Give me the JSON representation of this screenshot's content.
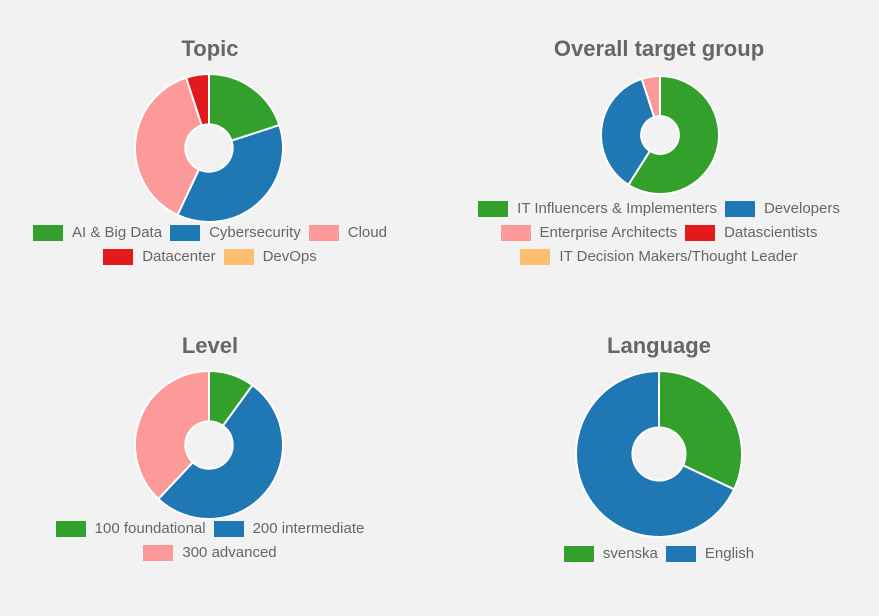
{
  "chart_data": [
    {
      "type": "pie",
      "title": "Topic",
      "categories": [
        "AI & Big Data",
        "Cybersecurity",
        "Cloud",
        "Datacenter",
        "DevOps"
      ],
      "values": [
        20,
        37,
        38,
        5,
        0
      ],
      "colors": [
        "#33a02c",
        "#1f78b4",
        "#fb9a99",
        "#e31a1c",
        "#fdbf6f"
      ],
      "legend_position": "bottom"
    },
    {
      "type": "pie",
      "title": "Overall target group",
      "categories": [
        "IT Influencers & Implementers",
        "Developers",
        "Enterprise Architects",
        "Datascientists",
        "IT Decision Makers/Thought Leader"
      ],
      "values": [
        59,
        36,
        5,
        0,
        0
      ],
      "colors": [
        "#33a02c",
        "#1f78b4",
        "#fb9a99",
        "#e31a1c",
        "#fdbf6f"
      ],
      "legend_position": "bottom"
    },
    {
      "type": "pie",
      "title": "Level",
      "categories": [
        "100 foundational",
        "200 intermediate",
        "300 advanced"
      ],
      "values": [
        10,
        52,
        38
      ],
      "colors": [
        "#33a02c",
        "#1f78b4",
        "#fb9a99"
      ],
      "legend_position": "bottom"
    },
    {
      "type": "pie",
      "title": "Language",
      "categories": [
        "svenska",
        "English"
      ],
      "values": [
        32,
        68
      ],
      "colors": [
        "#33a02c",
        "#1f78b4"
      ],
      "legend_position": "bottom"
    }
  ]
}
